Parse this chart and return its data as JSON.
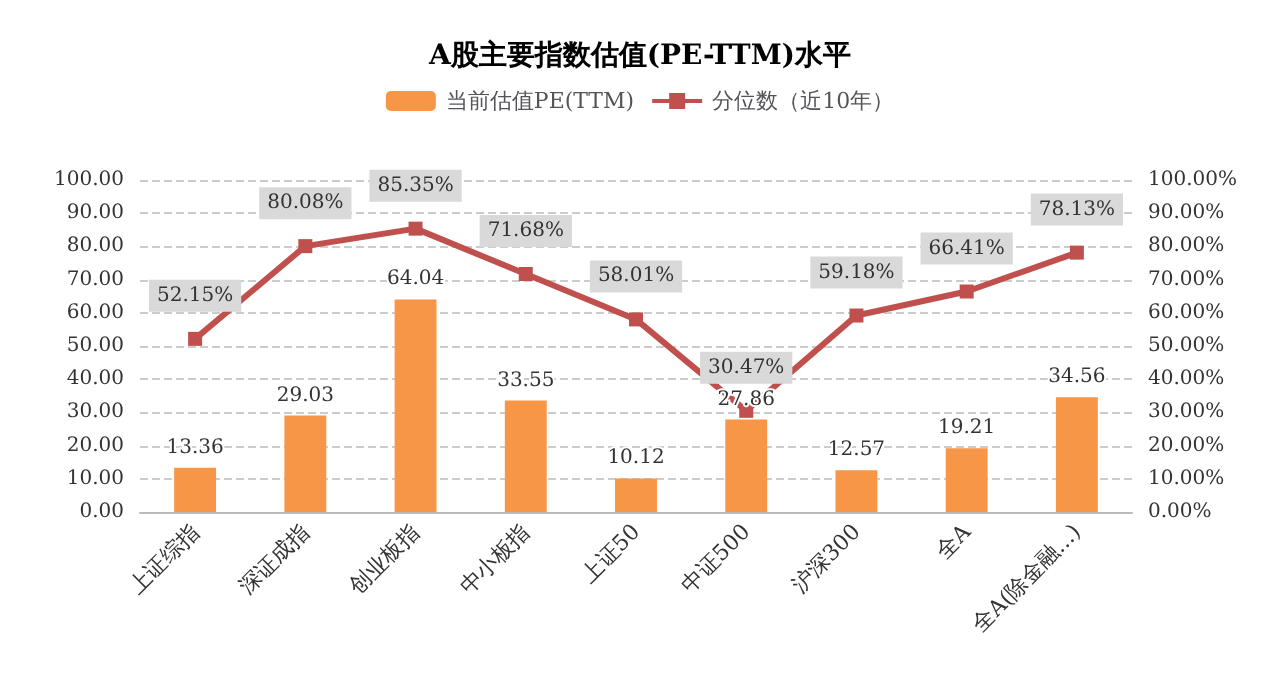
{
  "chart_data": {
    "type": "bar",
    "title": "A股主要指数估值(PE-TTM)水平",
    "categories": [
      "上证综指",
      "深证成指",
      "创业板指",
      "中小板指",
      "上证50",
      "中证500",
      "沪深300",
      "全A",
      "全A(除金融...)"
    ],
    "series": [
      {
        "name": "当前估值PE(TTM)",
        "color": "#f79646",
        "values": [
          13.36,
          29.03,
          64.04,
          33.55,
          10.12,
          27.86,
          12.57,
          19.21,
          34.56
        ],
        "value_labels": [
          "13.36",
          "29.03",
          "64.04",
          "33.55",
          "10.12",
          "27.86",
          "12.57",
          "19.21",
          "34.56"
        ]
      },
      {
        "name": "分位数（近10年）",
        "type": "line",
        "axis": "y2",
        "color": "#c0504d",
        "marker": "square",
        "values": [
          52.15,
          80.08,
          85.35,
          71.68,
          58.01,
          30.47,
          59.18,
          66.41,
          78.13
        ],
        "value_labels": [
          "52.15%",
          "80.08%",
          "85.35%",
          "71.68%",
          "58.01%",
          "30.47%",
          "59.18%",
          "66.41%",
          "78.13%"
        ]
      }
    ],
    "ylim": [
      0,
      100
    ],
    "yticks": [
      {
        "value": 0,
        "label": "0.00"
      },
      {
        "value": 10,
        "label": "10.00"
      },
      {
        "value": 20,
        "label": "20.00"
      },
      {
        "value": 30,
        "label": "30.00"
      },
      {
        "value": 40,
        "label": "40.00"
      },
      {
        "value": 50,
        "label": "50.00"
      },
      {
        "value": 60,
        "label": "60.00"
      },
      {
        "value": 70,
        "label": "70.00"
      },
      {
        "value": 80,
        "label": "80.00"
      },
      {
        "value": 90,
        "label": "90.00"
      },
      {
        "value": 100,
        "label": "100.00"
      }
    ],
    "y2lim": [
      0,
      100
    ],
    "y2ticks": [
      {
        "value": 0,
        "label": "0.00%"
      },
      {
        "value": 10,
        "label": "10.00%"
      },
      {
        "value": 20,
        "label": "20.00%"
      },
      {
        "value": 30,
        "label": "30.00%"
      },
      {
        "value": 40,
        "label": "40.00%"
      },
      {
        "value": 50,
        "label": "50.00%"
      },
      {
        "value": 60,
        "label": "60.00%"
      },
      {
        "value": 70,
        "label": "70.00%"
      },
      {
        "value": 80,
        "label": "80.00%"
      },
      {
        "value": 90,
        "label": "90.00%"
      },
      {
        "value": 100,
        "label": "100.00%"
      }
    ],
    "grid": "y",
    "legend": "top",
    "line_style": "solid"
  }
}
